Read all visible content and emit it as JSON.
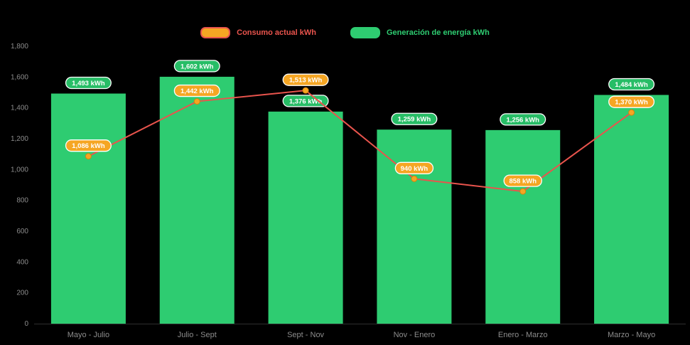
{
  "legend": {
    "items": [
      {
        "label": "Consumo actual kWh",
        "color": "#f5a623",
        "border_color": "#e9544d"
      },
      {
        "label": "Generación de energía kWh",
        "color": "#2ecc71"
      }
    ]
  },
  "colors": {
    "background": "#000000",
    "bar": "#2ecc71",
    "bar_badge": "#27bd66",
    "line": "#e9544d",
    "marker": "#f5a623",
    "marker_stroke": "#d3840e",
    "line_badge": "#f5a623",
    "badge_border": "#ffffff",
    "badge_text": "#ffffff",
    "axis_text": "#8c8c8c",
    "axis_line": "#2e2e2e"
  },
  "chart_data": {
    "type": "combo",
    "title": "",
    "xlabel": "",
    "ylabel": "",
    "grid": false,
    "legend_position": "top",
    "categories": [
      "Mayo - Julio",
      "Julio - Sept",
      "Sept - Nov",
      "Nov - Enero",
      "Enero - Marzo",
      "Marzo - Mayo"
    ],
    "ylim": [
      0,
      1800
    ],
    "ytick_step": 200,
    "yticks": [
      "0",
      "200",
      "400",
      "600",
      "800",
      "1,000",
      "1,200",
      "1,400",
      "1,600",
      "1,800"
    ],
    "series": [
      {
        "name": "Generación de energía kWh",
        "type": "bar",
        "color": "#2ecc71",
        "values": [
          1493,
          1602,
          1376,
          1259,
          1256,
          1484
        ],
        "labels": [
          "1,493 kWh",
          "1,602 kWh",
          "1,376 kWh",
          "1,259 kWh",
          "1,256 kWh",
          "1,484 kWh"
        ]
      },
      {
        "name": "Consumo actual kWh",
        "type": "line",
        "color": "#e9544d",
        "marker_color": "#f5a623",
        "values": [
          1086,
          1442,
          1513,
          940,
          858,
          1370
        ],
        "labels": [
          "1,086 kWh",
          "1,442 kWh",
          "1,513 kWh",
          "940 kWh",
          "858 kWh",
          "1,370 kWh"
        ]
      }
    ]
  }
}
